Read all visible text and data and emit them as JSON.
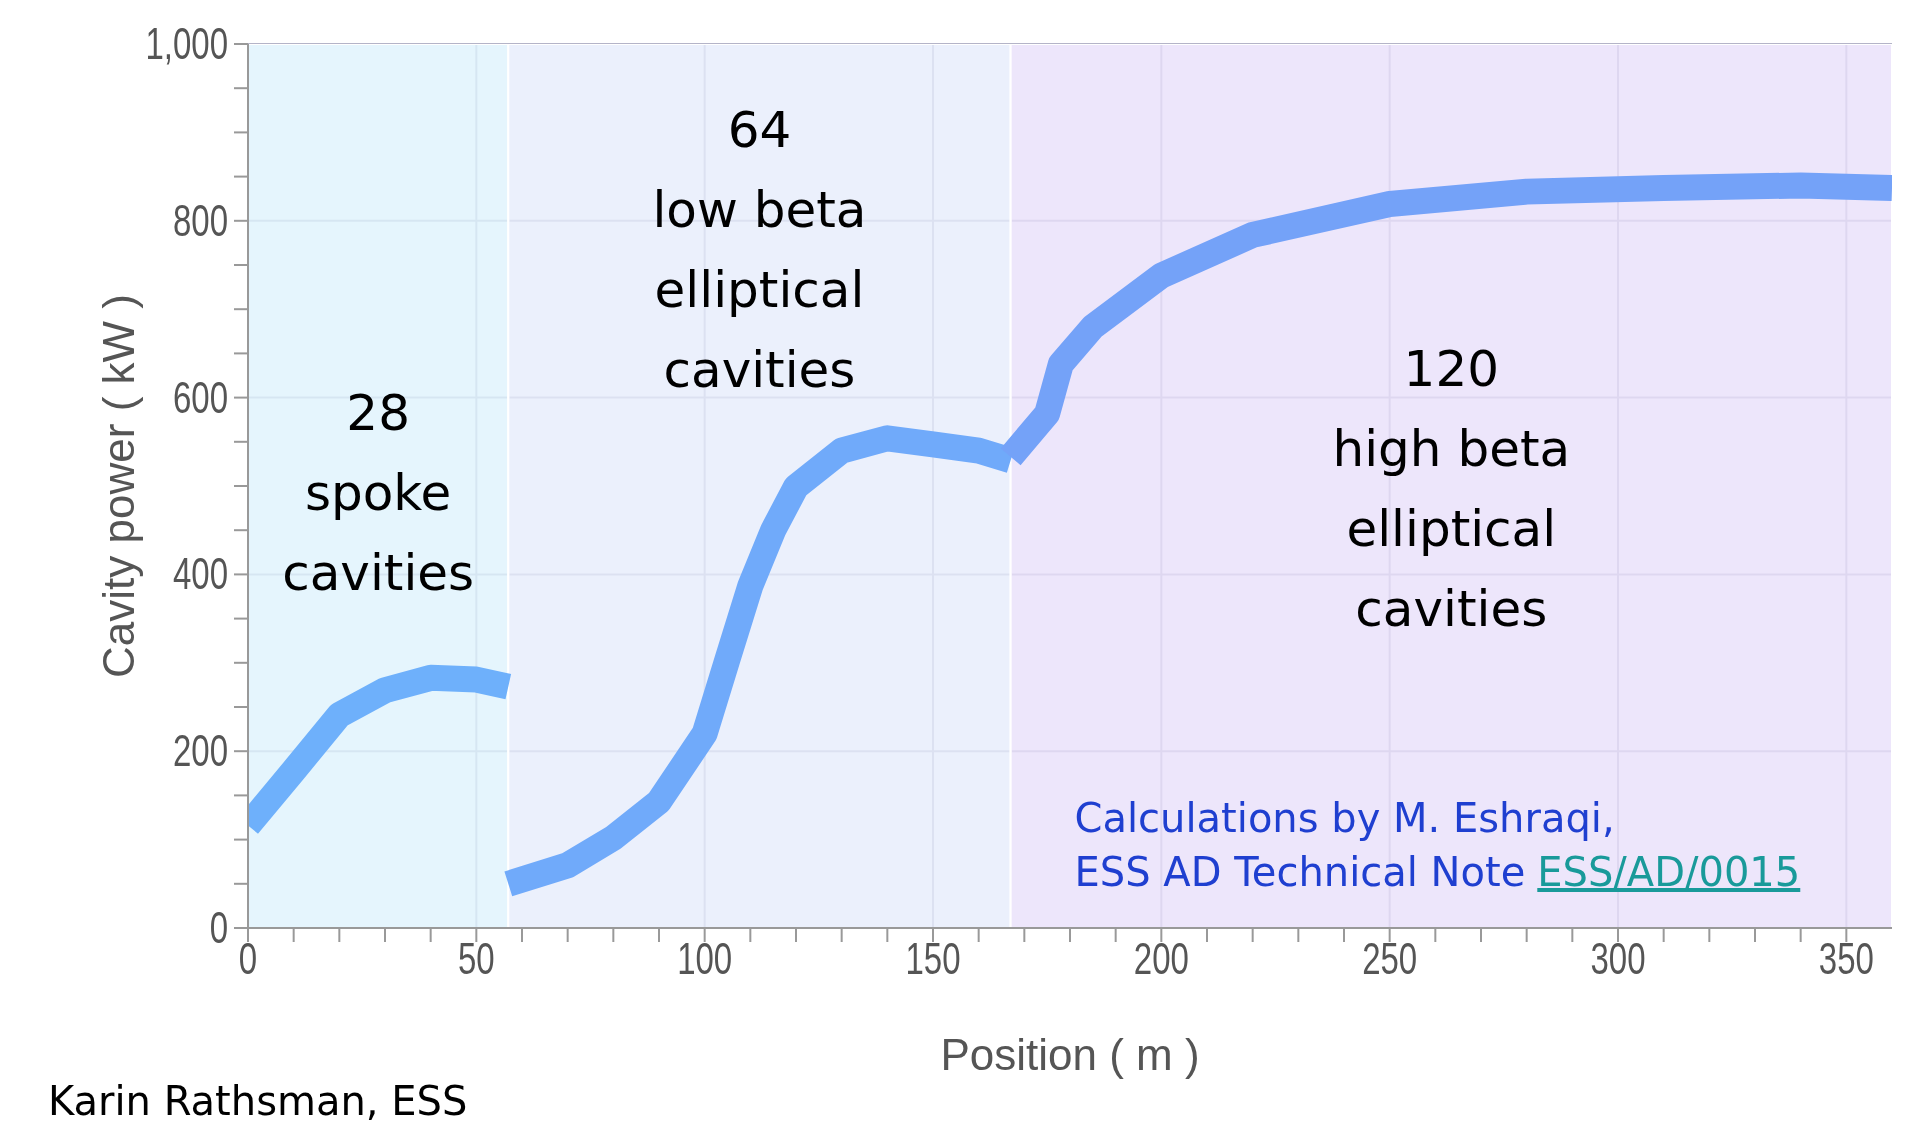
{
  "chart_data": {
    "type": "line",
    "xlabel": "Position ( m )",
    "ylabel": "Cavity power ( kW )",
    "xlim": [
      0,
      360
    ],
    "ylim": [
      0,
      1000
    ],
    "xticks": [
      0,
      {
        "value": 10,
        "label": null
      },
      {
        "value": 20,
        "label": null
      },
      {
        "value": 30,
        "label": null
      },
      {
        "value": 40,
        "label": null
      },
      50,
      {
        "value": 60,
        "label": null
      },
      {
        "value": 70,
        "label": null
      },
      {
        "value": 80,
        "label": null
      },
      {
        "value": 90,
        "label": null
      },
      100,
      {
        "value": 110,
        "label": null
      },
      {
        "value": 120,
        "label": null
      },
      {
        "value": 130,
        "label": null
      },
      {
        "value": 140,
        "label": null
      },
      150,
      {
        "value": 160,
        "label": null
      },
      {
        "value": 170,
        "label": null
      },
      {
        "value": 180,
        "label": null
      },
      {
        "value": 190,
        "label": null
      },
      200,
      {
        "value": 210,
        "label": null
      },
      {
        "value": 220,
        "label": null
      },
      {
        "value": 230,
        "label": null
      },
      {
        "value": 240,
        "label": null
      },
      250,
      {
        "value": 260,
        "label": null
      },
      {
        "value": 270,
        "label": null
      },
      {
        "value": 280,
        "label": null
      },
      {
        "value": 290,
        "label": null
      },
      300,
      {
        "value": 310,
        "label": null
      },
      {
        "value": 320,
        "label": null
      },
      {
        "value": 330,
        "label": null
      },
      {
        "value": 340,
        "label": null
      },
      350
    ],
    "yticks": [
      0,
      {
        "value": 50,
        "label": null
      },
      {
        "value": 100,
        "label": null
      },
      {
        "value": 150,
        "label": null
      },
      200,
      {
        "value": 250,
        "label": null
      },
      {
        "value": 300,
        "label": null
      },
      {
        "value": 350,
        "label": null
      },
      400,
      {
        "value": 450,
        "label": null
      },
      {
        "value": 500,
        "label": null
      },
      {
        "value": 550,
        "label": null
      },
      600,
      {
        "value": 650,
        "label": null
      },
      {
        "value": 700,
        "label": null
      },
      {
        "value": 750,
        "label": null
      },
      800,
      {
        "value": 850,
        "label": null
      },
      {
        "value": 900,
        "label": null
      },
      {
        "value": 950,
        "label": null
      },
      {
        "value": 1000,
        "label": "1,000"
      }
    ],
    "grid": true,
    "marker": "none",
    "line_style": "solid",
    "series": [
      {
        "color": "#6eb0fb",
        "x": [
          0,
          10,
          20,
          30,
          40,
          50,
          57
        ],
        "values": [
          116,
          178,
          241,
          269,
          283,
          281,
          273
        ]
      },
      {
        "color": "#70aafa",
        "x": [
          57,
          70,
          80,
          90,
          100,
          105,
          110,
          115,
          120,
          130,
          140,
          150,
          160,
          167
        ],
        "values": [
          50,
          71,
          102,
          143,
          220,
          304,
          387,
          450,
          499,
          540,
          554,
          547,
          540,
          529
        ]
      },
      {
        "color": "#74a2f8",
        "x": [
          167,
          175,
          178,
          185,
          200,
          220,
          250,
          280,
          310,
          340,
          360
        ],
        "values": [
          533,
          582,
          638,
          680,
          738,
          784,
          819,
          833,
          837,
          840,
          837
        ]
      }
    ],
    "bands": [
      {
        "axis": "x",
        "from": 0,
        "to": 57,
        "label": "28\nspoke\ncavities",
        "color": "#dff2fc"
      },
      {
        "axis": "x",
        "from": 57,
        "to": 167,
        "label": "64\nlow beta\nelliptical\ncavities",
        "color": "#e6ecfb"
      },
      {
        "axis": "x",
        "from": 167,
        "to": 360,
        "label": "120\nhigh beta\nelliptical\ncavities",
        "color": "#e8e0fa"
      }
    ],
    "annotations": [
      "Calculations by M. Eshraqi,\nESS AD Technical Note",
      "ESS/AD/0015",
      "Karin Rathsman, ESS"
    ]
  }
}
